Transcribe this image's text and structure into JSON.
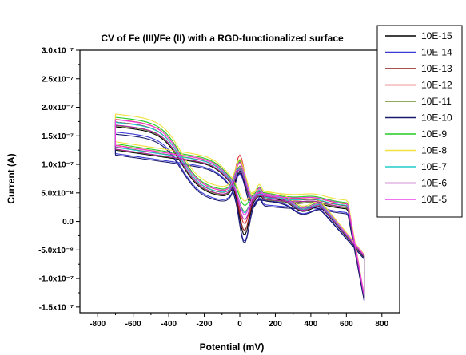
{
  "chart_data": {
    "type": "line",
    "title": "CV of Fe (III)/Fe (II) with a RGD-functionalized surface",
    "xlabel": "Potential (mV)",
    "ylabel": "Current (A)",
    "xlim": [
      -900,
      900
    ],
    "ylim": [
      -1.6e-07,
      3e-07
    ],
    "grid": false,
    "legend_position": "right",
    "x_ticks": [
      {
        "value": -800,
        "label": "-800"
      },
      {
        "value": -600,
        "label": "-600"
      },
      {
        "value": -400,
        "label": "-400"
      },
      {
        "value": -200,
        "label": "-200"
      },
      {
        "value": 0,
        "label": "0"
      },
      {
        "value": 200,
        "label": "200"
      },
      {
        "value": 400,
        "label": "400"
      },
      {
        "value": 600,
        "label": "600"
      },
      {
        "value": 800,
        "label": "800"
      }
    ],
    "y_ticks": [
      {
        "value": 3e-07,
        "label": "3.0x10⁻⁷"
      },
      {
        "value": 2.5e-07,
        "label": "2.5x10⁻⁷"
      },
      {
        "value": 2e-07,
        "label": "2.0x10⁻⁷"
      },
      {
        "value": 1.5e-07,
        "label": "1.5x10⁻⁷"
      },
      {
        "value": 1e-07,
        "label": "1.0x10⁻⁷"
      },
      {
        "value": 5e-08,
        "label": "5.0x10⁻⁸"
      },
      {
        "value": 0,
        "label": "0.0"
      },
      {
        "value": -5e-08,
        "label": "-5.0x10⁻⁸"
      },
      {
        "value": -1e-07,
        "label": "-1.0x10⁻⁷"
      },
      {
        "value": -1.5e-07,
        "label": "-1.5x10⁻⁷"
      }
    ],
    "series": [
      {
        "name": "10E-15",
        "color": "#000000",
        "offset": 0.0,
        "scale": 1.0,
        "peak": 1.3e-07,
        "vpeak": -1.1e-07
      },
      {
        "name": "10E-14",
        "color": "#3a3ad6",
        "offset": -6e-09,
        "scale": 0.98,
        "peak": 1.36e-07,
        "vpeak": -1.18e-07
      },
      {
        "name": "10E-13",
        "color": "#8b1a1a",
        "offset": 5e-09,
        "scale": 1.02,
        "peak": 1.42e-07,
        "vpeak": -1.05e-07
      },
      {
        "name": "10E-12",
        "color": "#e03030",
        "offset": 8e-09,
        "scale": 1.03,
        "peak": 1.5e-07,
        "vpeak": -9.5e-08
      },
      {
        "name": "10E-11",
        "color": "#6b8e23",
        "offset": 2e-09,
        "scale": 1.0,
        "peak": 1.4e-07,
        "vpeak": -7e-08
      },
      {
        "name": "10E-10",
        "color": "#1a1a6e",
        "offset": -8e-09,
        "scale": 0.97,
        "peak": 1.45e-07,
        "vpeak": -1.2e-07
      },
      {
        "name": "10E-9",
        "color": "#22cc22",
        "offset": 1e-08,
        "scale": 1.04,
        "peak": 1.38e-07,
        "vpeak": -6.5e-08
      },
      {
        "name": "10E-8",
        "color": "#f0e040",
        "offset": 1.4e-08,
        "scale": 1.05,
        "peak": 1.35e-07,
        "vpeak": -6e-08
      },
      {
        "name": "10E-7",
        "color": "#22cccc",
        "offset": 6e-09,
        "scale": 1.01,
        "peak": 1.32e-07,
        "vpeak": -7.5e-08
      },
      {
        "name": "10E-6",
        "color": "#aa22aa",
        "offset": 3e-09,
        "scale": 1.0,
        "peak": 1.34e-07,
        "vpeak": -8.5e-08
      },
      {
        "name": "10E-5",
        "color": "#ee44ee",
        "offset": 9e-09,
        "scale": 1.02,
        "peak": 1.37e-07,
        "vpeak": -8e-08
      }
    ]
  }
}
